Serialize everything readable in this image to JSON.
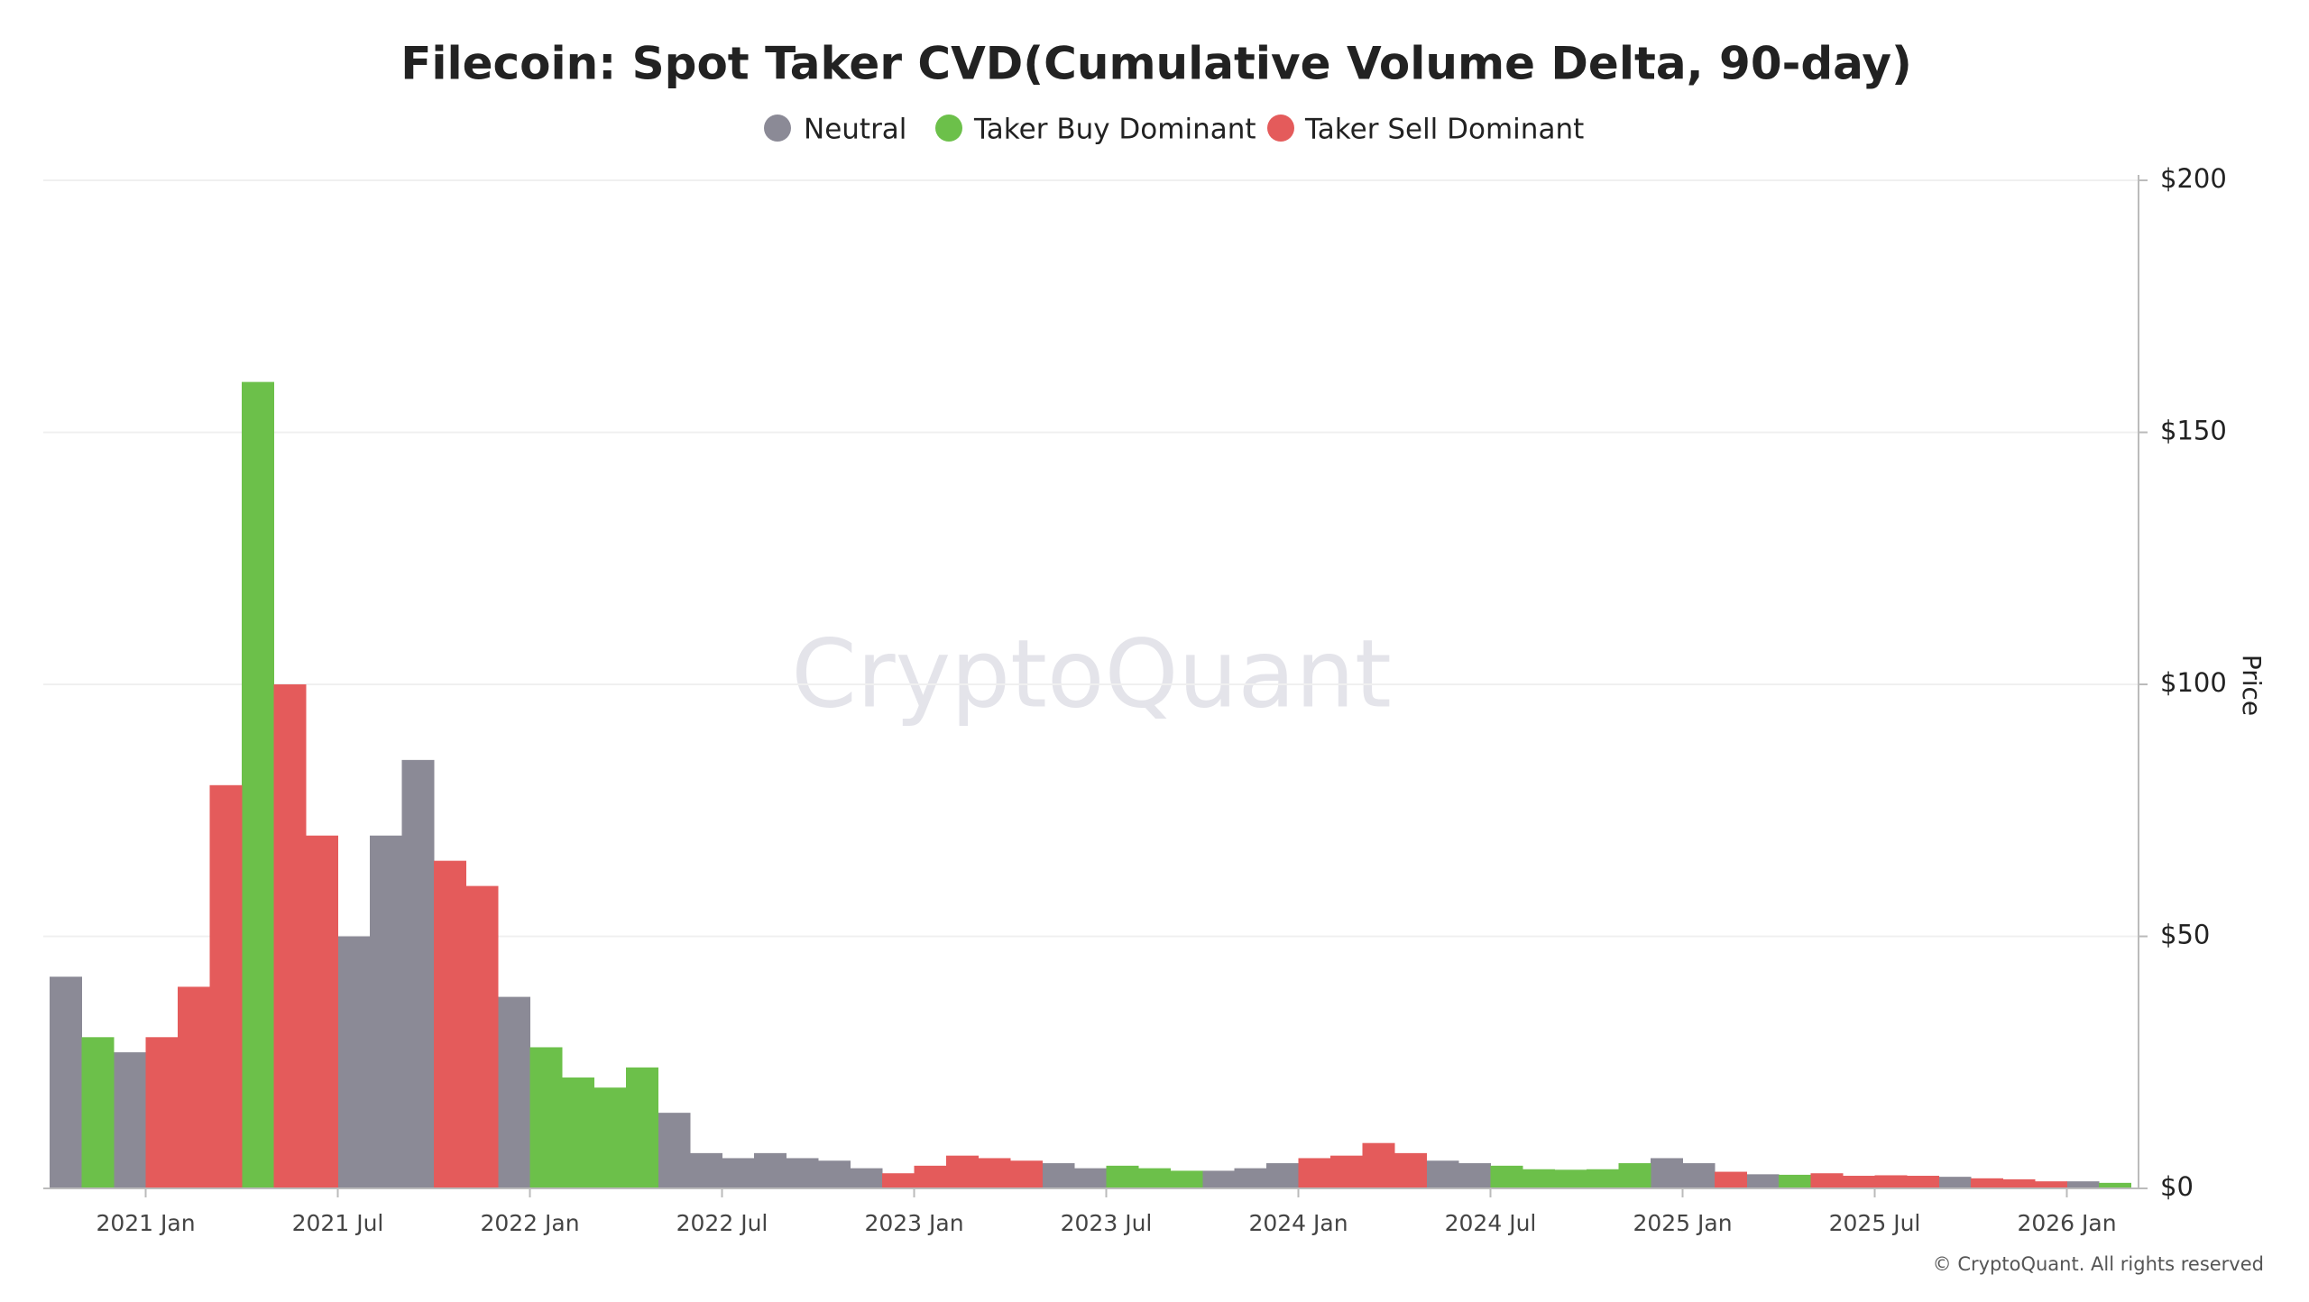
{
  "chart_data": {
    "type": "bar",
    "title": "Filecoin: Spot Taker CVD(Cumulative Volume Delta, 90-day)",
    "y_label": "Price",
    "watermark": "CryptoQuant",
    "copyright": "© CryptoQuant. All rights reserved",
    "x": [
      "2020-10",
      "2020-11",
      "2020-12",
      "2021-01",
      "2021-02",
      "2021-03",
      "2021-04",
      "2021-05",
      "2021-06",
      "2021-07",
      "2021-08",
      "2021-09",
      "2021-10",
      "2021-11",
      "2021-12",
      "2022-01",
      "2022-02",
      "2022-03",
      "2022-04",
      "2022-05",
      "2022-06",
      "2022-07",
      "2022-08",
      "2022-09",
      "2022-10",
      "2022-11",
      "2022-12",
      "2023-01",
      "2023-02",
      "2023-03",
      "2023-04",
      "2023-05",
      "2023-06",
      "2023-07",
      "2023-08",
      "2023-09",
      "2023-10",
      "2023-11",
      "2023-12",
      "2024-01",
      "2024-02",
      "2024-03",
      "2024-04",
      "2024-05",
      "2024-06",
      "2024-07",
      "2024-08",
      "2024-09",
      "2024-10",
      "2024-11",
      "2024-12",
      "2025-01",
      "2025-02",
      "2025-03",
      "2025-04",
      "2025-05",
      "2025-06",
      "2025-07",
      "2025-08",
      "2025-09",
      "2025-10",
      "2025-11",
      "2025-12",
      "2026-01",
      "2026-02"
    ],
    "xticks": [
      {
        "value": "2021-01",
        "label": "2021 Jan"
      },
      {
        "value": "2021-07",
        "label": "2021 Jul"
      },
      {
        "value": "2022-01",
        "label": "2022 Jan"
      },
      {
        "value": "2022-07",
        "label": "2022 Jul"
      },
      {
        "value": "2023-01",
        "label": "2023 Jan"
      },
      {
        "value": "2023-07",
        "label": "2023 Jul"
      },
      {
        "value": "2024-01",
        "label": "2024 Jan"
      },
      {
        "value": "2024-07",
        "label": "2024 Jul"
      },
      {
        "value": "2025-01",
        "label": "2025 Jan"
      },
      {
        "value": "2025-07",
        "label": "2025 Jul"
      },
      {
        "value": "2026-01",
        "label": "2026 Jan"
      }
    ],
    "series": [
      {
        "name": "Neutral",
        "color": "#8b8a96",
        "values": [
          42,
          null,
          27,
          null,
          null,
          null,
          null,
          null,
          null,
          50,
          70,
          85,
          null,
          null,
          38,
          null,
          null,
          null,
          null,
          15,
          7,
          6,
          7,
          6,
          5.5,
          4,
          null,
          null,
          null,
          null,
          null,
          5,
          4,
          null,
          null,
          null,
          3.5,
          4,
          5,
          null,
          null,
          null,
          null,
          5.5,
          5,
          null,
          null,
          null,
          null,
          null,
          6,
          5,
          null,
          2.8,
          null,
          null,
          null,
          null,
          null,
          2.3,
          null,
          null,
          null,
          1.4,
          null
        ]
      },
      {
        "name": "Taker Buy Dominant",
        "color": "#6cc04a",
        "values": [
          null,
          30,
          null,
          null,
          null,
          null,
          160,
          null,
          null,
          null,
          null,
          null,
          null,
          null,
          null,
          28,
          22,
          20,
          24,
          null,
          null,
          null,
          null,
          null,
          null,
          null,
          null,
          null,
          null,
          null,
          null,
          null,
          null,
          4.5,
          4,
          3.5,
          null,
          null,
          null,
          null,
          null,
          null,
          null,
          null,
          null,
          4.5,
          3.8,
          3.7,
          3.8,
          5,
          null,
          null,
          null,
          null,
          2.7,
          null,
          null,
          null,
          null,
          null,
          null,
          null,
          null,
          null,
          1.1
        ]
      },
      {
        "name": "Taker Sell Dominant",
        "color": "#e45b5b",
        "values": [
          null,
          null,
          null,
          30,
          40,
          80,
          null,
          100,
          70,
          null,
          null,
          null,
          65,
          60,
          null,
          null,
          null,
          null,
          null,
          null,
          null,
          null,
          null,
          null,
          null,
          null,
          3,
          4.5,
          6.5,
          6,
          5.5,
          null,
          null,
          null,
          null,
          null,
          null,
          null,
          null,
          6,
          6.5,
          9,
          7,
          null,
          null,
          null,
          null,
          null,
          null,
          null,
          null,
          null,
          3.3,
          null,
          null,
          3,
          2.5,
          2.6,
          2.5,
          null,
          2,
          1.8,
          1.4,
          null,
          null
        ]
      }
    ],
    "ylim": [
      0,
      200
    ],
    "yticks": [
      {
        "value": 0,
        "label": "$0"
      },
      {
        "value": 50,
        "label": "$50"
      },
      {
        "value": 100,
        "label": "$100"
      },
      {
        "value": 150,
        "label": "$150"
      },
      {
        "value": 200,
        "label": "$200"
      }
    ],
    "grid": true
  }
}
